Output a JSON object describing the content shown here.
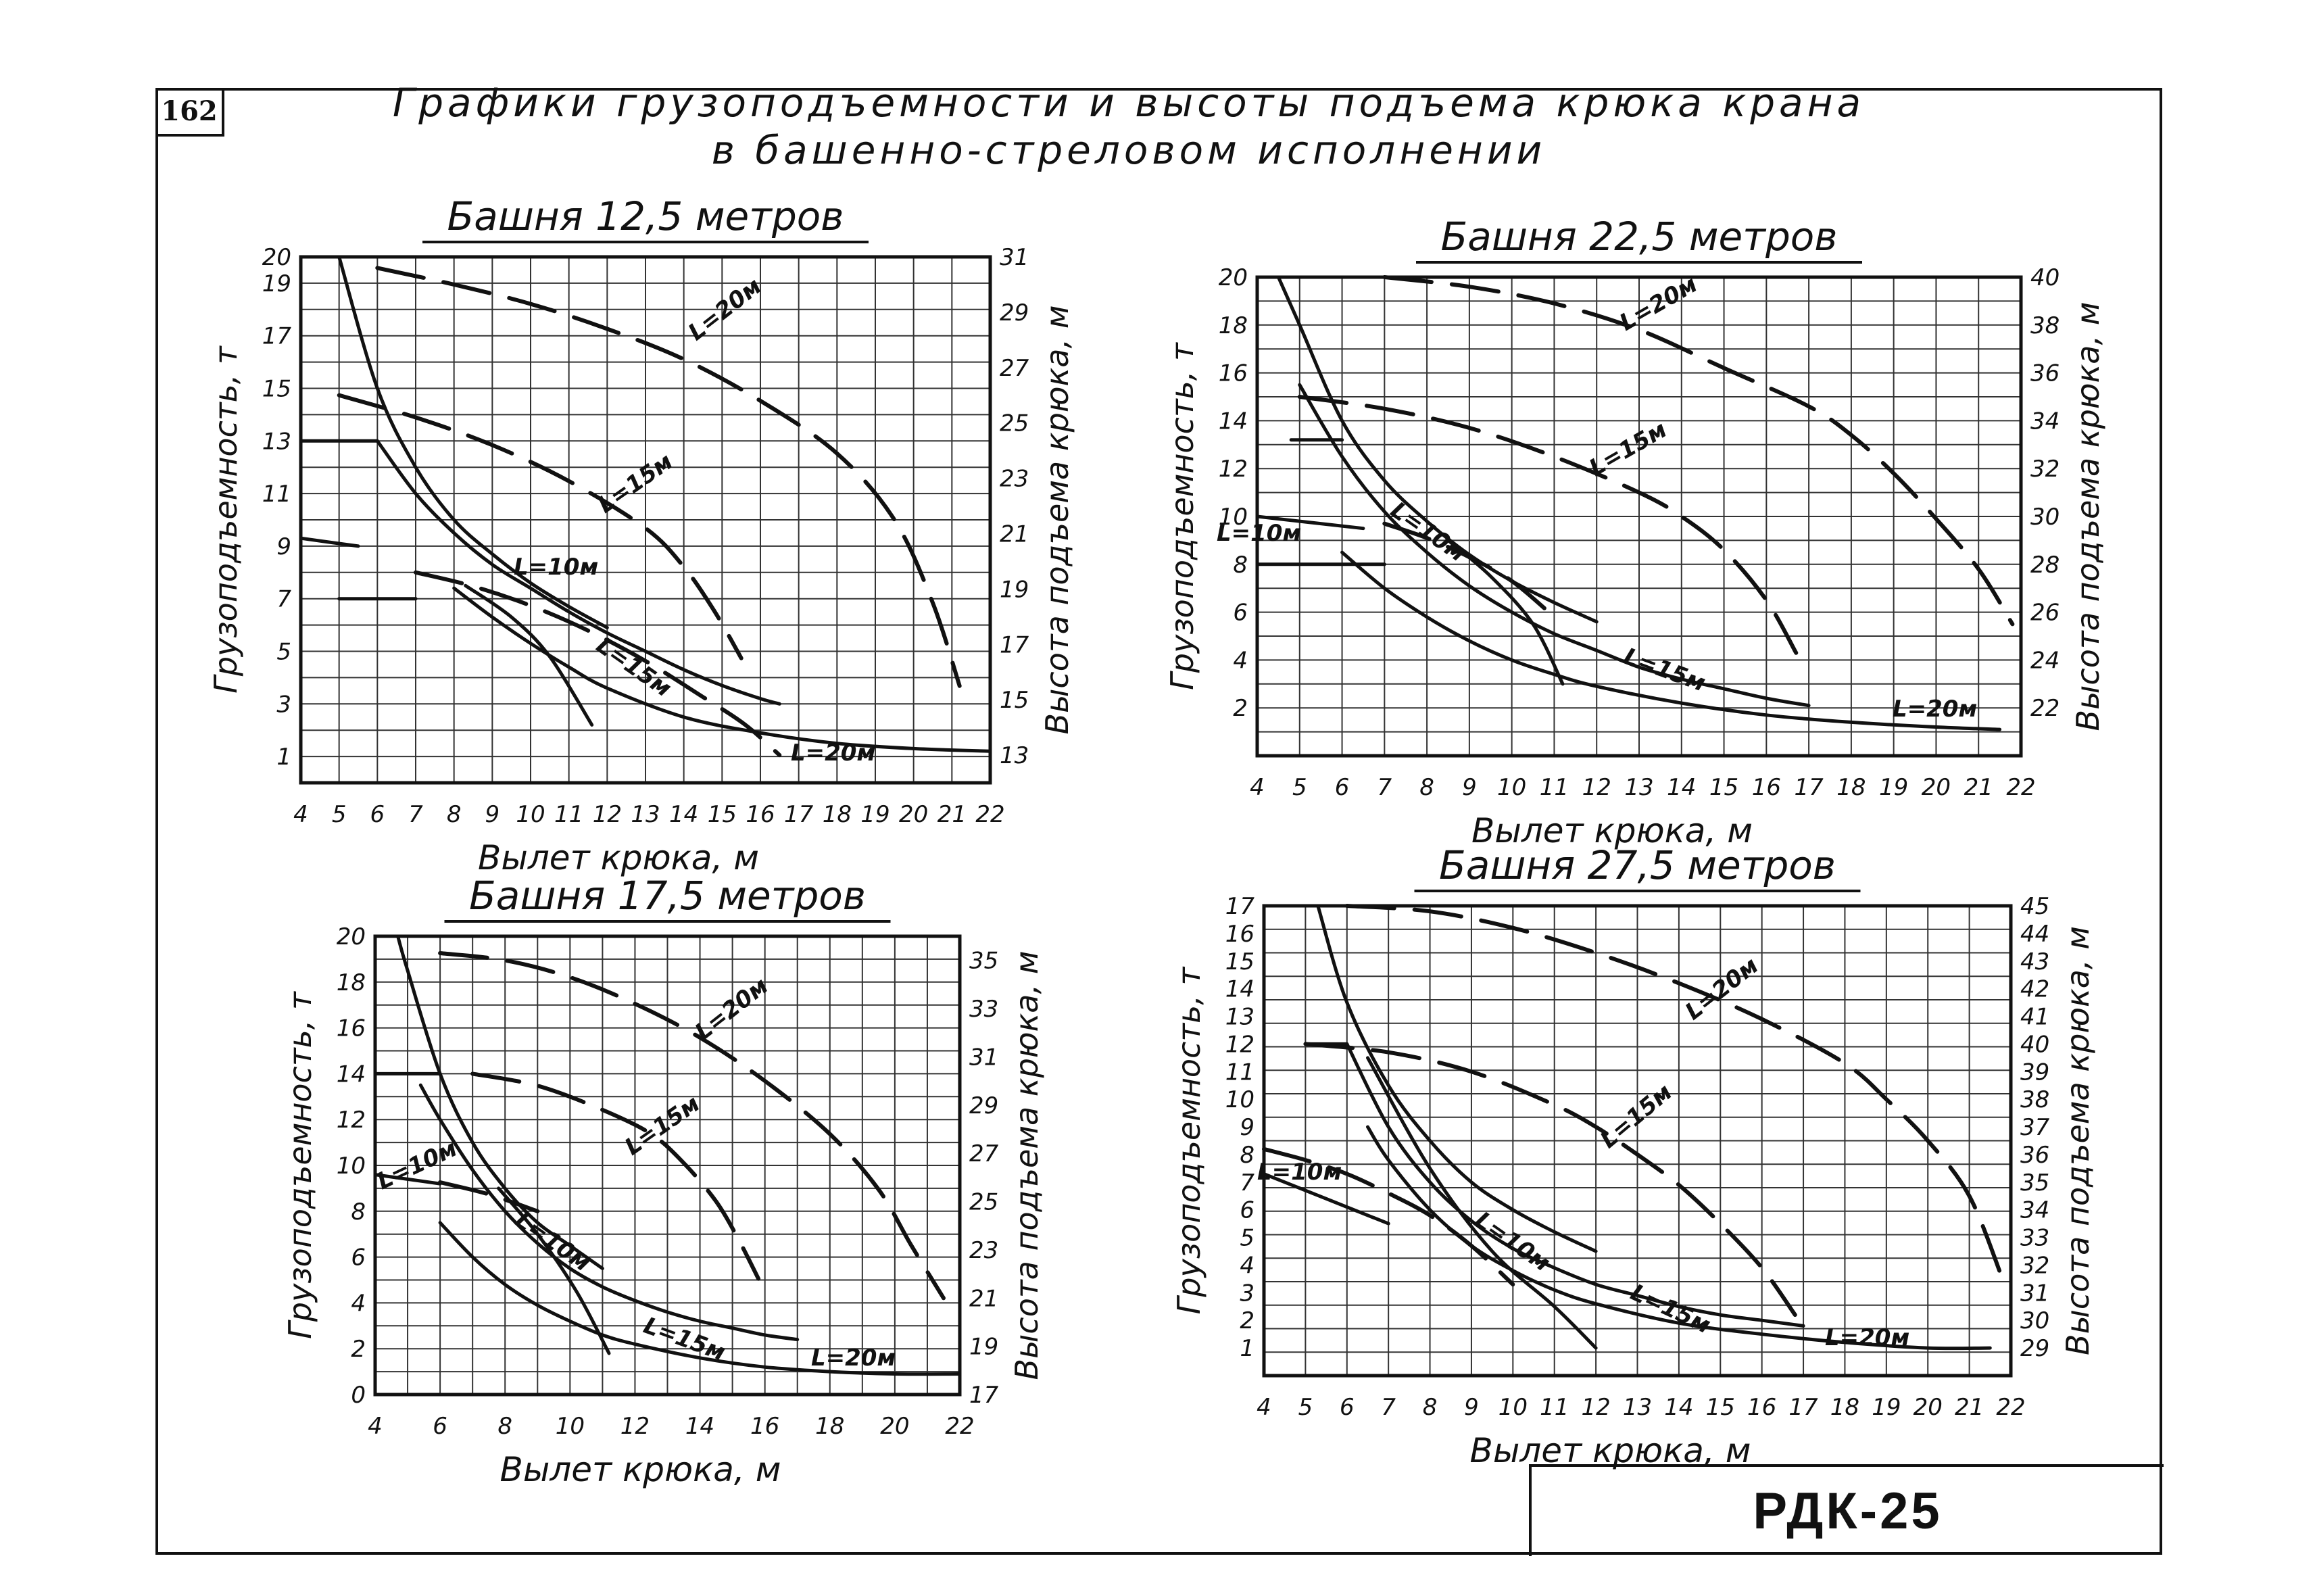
{
  "page": {
    "page_number": "162",
    "title_line1": "Графики грузоподъемности и высоты подъема крюка крана",
    "title_line2": "в башенно-стреловом исполнении",
    "stamp": "РДК-25"
  },
  "chart_data": [
    {
      "type": "line",
      "title": "Башня 12,5 метров",
      "xlabel": "Вылет крюка, м",
      "ylabel": "Грузоподъемность, т",
      "y2label": "Высота подъема крюка, м",
      "xlim": [
        4,
        22
      ],
      "ylim": [
        0,
        20
      ],
      "y2lim": [
        12,
        31
      ],
      "xticks": [
        "4",
        "5",
        "6",
        "7",
        "8",
        "9",
        "10",
        "11",
        "12",
        "13",
        "14",
        "15",
        "16",
        "17",
        "18",
        "19",
        "20",
        "21",
        "22"
      ],
      "yticks": [
        "1",
        "3",
        "5",
        "7",
        "9",
        "11",
        "13",
        "15",
        "17",
        "19",
        "20"
      ],
      "y2ticks": [
        "13",
        "15",
        "17",
        "19",
        "21",
        "23",
        "25",
        "27",
        "29",
        "31"
      ],
      "grid": true,
      "series": [
        {
          "name": "L=10м",
          "axis": "left",
          "style": "solid",
          "x": [
            5,
            6,
            7,
            8,
            9,
            10,
            11,
            12
          ],
          "y": [
            20,
            15,
            12,
            10,
            8.7,
            7.6,
            6.7,
            5.9
          ]
        },
        {
          "name": "L=15м",
          "axis": "left",
          "style": "solid",
          "x": [
            6,
            7,
            8,
            9,
            10,
            11,
            12,
            13,
            14,
            15,
            16,
            16.5
          ],
          "y": [
            13,
            11,
            9.5,
            8.3,
            7.4,
            6.5,
            5.7,
            5,
            4.3,
            3.7,
            3.2,
            3
          ]
        },
        {
          "name": "L=20м",
          "axis": "left",
          "style": "solid",
          "x": [
            8,
            9,
            10,
            11,
            12,
            14,
            16,
            18,
            20,
            22
          ],
          "y": [
            7.4,
            6.3,
            5.3,
            4.4,
            3.6,
            2.5,
            1.9,
            1.5,
            1.3,
            1.2
          ]
        },
        {
          "name": "",
          "axis": "left",
          "style": "solid",
          "x": [
            8.3,
            9.5,
            10.5,
            11.6
          ],
          "y": [
            7.5,
            6.3,
            4.8,
            2.2
          ]
        },
        {
          "name": "",
          "axis": "left",
          "style": "solid",
          "x": [
            4,
            5.5
          ],
          "y": [
            9.3,
            9
          ]
        },
        {
          "name": "",
          "axis": "left",
          "style": "solid",
          "x": [
            4,
            6
          ],
          "y": [
            13,
            13
          ]
        },
        {
          "name": "",
          "axis": "left",
          "style": "solid",
          "x": [
            5,
            7
          ],
          "y": [
            7,
            7
          ]
        },
        {
          "name": "L=20м",
          "axis": "right",
          "style": "dashed",
          "x": [
            6,
            8,
            10,
            12,
            14,
            16,
            18,
            19.5,
            20.5,
            21.2
          ],
          "y": [
            30.6,
            30,
            29.3,
            28.4,
            27.3,
            25.8,
            23.9,
            21.5,
            18.5,
            15.5
          ]
        },
        {
          "name": "L=15м",
          "axis": "right",
          "style": "dashed",
          "x": [
            5,
            7,
            9,
            11,
            13,
            14,
            14.8,
            15.5
          ],
          "y": [
            26,
            25.2,
            24.2,
            22.9,
            21.2,
            19.8,
            18.2,
            16.5
          ]
        },
        {
          "name": "L=10м",
          "axis": "right",
          "style": "dashed",
          "x": [
            7,
            8.5,
            10,
            11.5,
            13,
            14.5,
            15.6,
            16.5
          ],
          "y": [
            19.6,
            19.1,
            18.4,
            17.5,
            16.4,
            15.1,
            14.1,
            13
          ]
        }
      ],
      "annotations": [
        "L=20м",
        "L=15м",
        "L=10м",
        "L=15м",
        "L=20м"
      ]
    },
    {
      "type": "line",
      "title": "Башня 22,5 метров",
      "xlabel": "Вылет крюка, м",
      "ylabel": "Грузоподъемность, т",
      "y2label": "Высота подъема крюка, м",
      "xlim": [
        4,
        22
      ],
      "ylim": [
        0,
        20
      ],
      "y2lim": [
        20,
        40
      ],
      "xticks": [
        "4",
        "5",
        "6",
        "7",
        "8",
        "9",
        "10",
        "11",
        "12",
        "13",
        "14",
        "15",
        "16",
        "17",
        "18",
        "19",
        "20",
        "21",
        "22"
      ],
      "yticks": [
        "2",
        "4",
        "6",
        "8",
        "10",
        "12",
        "14",
        "16",
        "18",
        "20"
      ],
      "y2ticks": [
        "22",
        "24",
        "26",
        "28",
        "30",
        "32",
        "34",
        "36",
        "38",
        "40"
      ],
      "grid": true,
      "series": [
        {
          "name": "L=10м",
          "axis": "left",
          "style": "solid",
          "x": [
            4.5,
            5,
            6,
            7,
            8,
            9,
            10,
            11,
            12
          ],
          "y": [
            20,
            18,
            14,
            11.5,
            9.8,
            8.4,
            7.3,
            6.4,
            5.6
          ]
        },
        {
          "name": "L=15м",
          "axis": "left",
          "style": "solid",
          "x": [
            5,
            6,
            7,
            8,
            9,
            10,
            11,
            12,
            13,
            14,
            15,
            16,
            17
          ],
          "y": [
            15.5,
            12.5,
            10.2,
            8.5,
            7.1,
            6,
            5.1,
            4.4,
            3.7,
            3.2,
            2.8,
            2.4,
            2.1
          ]
        },
        {
          "name": "L=20м",
          "axis": "left",
          "style": "solid",
          "x": [
            6,
            7,
            8,
            9,
            10,
            11,
            12,
            14,
            16,
            18,
            20,
            21.5
          ],
          "y": [
            8.5,
            7,
            5.8,
            4.8,
            4,
            3.4,
            2.9,
            2.2,
            1.7,
            1.4,
            1.2,
            1.1
          ]
        },
        {
          "name": "",
          "axis": "left",
          "style": "solid",
          "x": [
            8.5,
            9.5,
            10.5,
            11.2
          ],
          "y": [
            9,
            7.5,
            5.5,
            3
          ]
        },
        {
          "name": "",
          "axis": "left",
          "style": "solid",
          "x": [
            4,
            6.5
          ],
          "y": [
            10,
            9.5
          ]
        },
        {
          "name": "",
          "axis": "left",
          "style": "solid",
          "x": [
            4,
            7
          ],
          "y": [
            8,
            8
          ]
        },
        {
          "name": "",
          "axis": "left",
          "style": "solid",
          "x": [
            4.8,
            6
          ],
          "y": [
            13.2,
            13.2
          ]
        },
        {
          "name": "L=20м",
          "axis": "right",
          "style": "dashed",
          "x": [
            7,
            9,
            11,
            13,
            15,
            17,
            18,
            19,
            20,
            21,
            21.8
          ],
          "y": [
            40,
            39.6,
            38.9,
            37.8,
            36.2,
            34.6,
            33.4,
            31.8,
            29.9,
            27.8,
            25.5
          ]
        },
        {
          "name": "L=15м",
          "axis": "right",
          "style": "dashed",
          "x": [
            5,
            7,
            9,
            11,
            13,
            14,
            15,
            16,
            16.7
          ],
          "y": [
            35,
            34.5,
            33.7,
            32.5,
            31,
            30,
            28.6,
            26.5,
            24.3
          ]
        },
        {
          "name": "L=10м",
          "axis": "right",
          "style": "dashed",
          "x": [
            7,
            8,
            9,
            10,
            11
          ],
          "y": [
            29.7,
            29.1,
            28.3,
            27.3,
            25.8
          ]
        }
      ],
      "annotations": [
        "L=20м",
        "L=15м",
        "L=10м",
        "L=10м",
        "L=15м",
        "L=20м"
      ]
    },
    {
      "type": "line",
      "title": "Башня 17,5 метров",
      "xlabel": "Вылет крюка, м",
      "ylabel": "Грузоподъемность, т",
      "y2label": "Высота подъема крюка, м",
      "xlim": [
        4,
        22
      ],
      "ylim": [
        0,
        20
      ],
      "y2lim": [
        17,
        36
      ],
      "xticks": [
        "4",
        "6",
        "8",
        "10",
        "12",
        "14",
        "16",
        "18",
        "20",
        "22"
      ],
      "yticks": [
        "0",
        "2",
        "4",
        "6",
        "8",
        "10",
        "12",
        "14",
        "16",
        "18",
        "20"
      ],
      "y2ticks": [
        "17",
        "19",
        "21",
        "23",
        "25",
        "27",
        "29",
        "31",
        "33",
        "35"
      ],
      "grid": true,
      "series": [
        {
          "name": "L=10м",
          "axis": "left",
          "style": "solid",
          "x": [
            4.7,
            5,
            6,
            7,
            8,
            9,
            10,
            11
          ],
          "y": [
            20,
            18.5,
            14,
            11,
            9,
            7.5,
            6.5,
            5.5
          ]
        },
        {
          "name": "L=15м",
          "axis": "left",
          "style": "solid",
          "x": [
            5.4,
            6,
            7,
            8,
            9,
            10,
            11,
            12,
            13,
            14,
            15,
            16,
            17
          ],
          "y": [
            13.5,
            12,
            9.8,
            8,
            6.6,
            5.5,
            4.7,
            4.1,
            3.6,
            3.2,
            2.9,
            2.6,
            2.4
          ]
        },
        {
          "name": "L=20м",
          "axis": "left",
          "style": "solid",
          "x": [
            6,
            7,
            8,
            9,
            10,
            11,
            12,
            14,
            16,
            18,
            20,
            22
          ],
          "y": [
            7.5,
            6,
            4.8,
            3.9,
            3.2,
            2.6,
            2.2,
            1.6,
            1.2,
            1,
            0.9,
            0.9
          ]
        },
        {
          "name": "",
          "axis": "left",
          "style": "solid",
          "x": [
            7.8,
            9,
            10.2,
            11.2
          ],
          "y": [
            9,
            7,
            4.5,
            1.8
          ]
        },
        {
          "name": "",
          "axis": "left",
          "style": "solid",
          "x": [
            4,
            6
          ],
          "y": [
            9.6,
            9.2
          ]
        },
        {
          "name": "",
          "axis": "left",
          "style": "solid",
          "x": [
            4,
            6
          ],
          "y": [
            14,
            14
          ]
        },
        {
          "name": "L=20м",
          "axis": "right",
          "style": "dashed",
          "x": [
            6,
            8,
            10,
            12,
            14,
            16,
            18,
            19.5,
            20.5,
            21.5
          ],
          "y": [
            35.3,
            35,
            34.3,
            33.2,
            31.8,
            30,
            27.8,
            25.5,
            23.2,
            21
          ]
        },
        {
          "name": "L=15м",
          "axis": "right",
          "style": "dashed",
          "x": [
            7,
            9,
            11,
            12.5,
            13.5,
            14.5,
            15.2,
            15.8
          ],
          "y": [
            30.3,
            29.8,
            28.8,
            27.8,
            26.6,
            25,
            23.4,
            21.8
          ]
        },
        {
          "name": "L=10м",
          "axis": "right",
          "style": "dashed",
          "x": [
            6,
            7.5,
            9
          ],
          "y": [
            25.8,
            25.3,
            24.6
          ]
        }
      ],
      "annotations": [
        "L=20м",
        "L=15м",
        "L=10м",
        "L=10м",
        "L=15м",
        "L=20м"
      ]
    },
    {
      "type": "line",
      "title": "Башня 27,5 метров",
      "xlabel": "Вылет крюка, м",
      "ylabel": "Грузоподъемность, т",
      "y2label": "Высота подъема крюка, м",
      "xlim": [
        4,
        22
      ],
      "ylim": [
        0,
        17
      ],
      "y2lim": [
        28,
        45
      ],
      "xticks": [
        "4",
        "5",
        "6",
        "7",
        "8",
        "9",
        "10",
        "11",
        "12",
        "13",
        "14",
        "15",
        "16",
        "17",
        "18",
        "19",
        "20",
        "21",
        "22"
      ],
      "yticks": [
        "1",
        "2",
        "3",
        "4",
        "5",
        "6",
        "7",
        "8",
        "9",
        "10",
        "11",
        "12",
        "13",
        "14",
        "15",
        "16",
        "17"
      ],
      "y2ticks": [
        "29",
        "30",
        "31",
        "32",
        "33",
        "34",
        "35",
        "36",
        "37",
        "38",
        "39",
        "40",
        "41",
        "42",
        "43",
        "44",
        "45"
      ],
      "grid": true,
      "series": [
        {
          "name": "L=10м",
          "axis": "left",
          "style": "solid",
          "x": [
            5.3,
            6,
            7,
            8,
            9,
            10,
            11,
            12
          ],
          "y": [
            17,
            13.5,
            10.5,
            8.5,
            7,
            6,
            5.2,
            4.5
          ]
        },
        {
          "name": "L=15м",
          "axis": "left",
          "style": "solid",
          "x": [
            6,
            7,
            8,
            9,
            10,
            11,
            12,
            13,
            14,
            15,
            16,
            17
          ],
          "y": [
            12,
            9,
            7,
            5.6,
            4.6,
            3.9,
            3.3,
            2.9,
            2.5,
            2.2,
            2,
            1.8
          ]
        },
        {
          "name": "L=20м",
          "axis": "left",
          "style": "solid",
          "x": [
            6.5,
            7,
            8,
            9,
            10,
            11,
            12,
            14,
            16,
            18,
            20,
            21.5
          ],
          "y": [
            9,
            7.8,
            6,
            4.7,
            3.8,
            3.1,
            2.6,
            1.9,
            1.5,
            1.2,
            1,
            1
          ]
        },
        {
          "name": "",
          "axis": "left",
          "style": "solid",
          "x": [
            6.5,
            8,
            9.5,
            11,
            12
          ],
          "y": [
            11.5,
            7.5,
            4.5,
            2.5,
            1
          ]
        },
        {
          "name": "",
          "axis": "left",
          "style": "solid",
          "x": [
            4,
            7
          ],
          "y": [
            7.3,
            5.5
          ]
        },
        {
          "name": "",
          "axis": "left",
          "style": "solid",
          "x": [
            5,
            6
          ],
          "y": [
            12,
            12
          ]
        },
        {
          "name": "L=20м",
          "axis": "right",
          "style": "dashed",
          "x": [
            6,
            8,
            10,
            12,
            14,
            16,
            18,
            19,
            20,
            21,
            21.8
          ],
          "y": [
            45,
            44.8,
            44.2,
            43.3,
            42.2,
            40.9,
            39.3,
            38,
            36.5,
            34.5,
            31.5
          ]
        },
        {
          "name": "L=15м",
          "axis": "right",
          "style": "dashed",
          "x": [
            5,
            7,
            9,
            11,
            12,
            13,
            14,
            15,
            16,
            16.8
          ],
          "y": [
            40,
            39.7,
            39,
            37.8,
            37,
            36,
            34.9,
            33.5,
            31.9,
            30.2
          ]
        },
        {
          "name": "L=10м",
          "axis": "right",
          "style": "dashed",
          "x": [
            4,
            5,
            6,
            7,
            8,
            9,
            10
          ],
          "y": [
            36.2,
            35.8,
            35.3,
            34.6,
            33.8,
            32.7,
            31.3
          ]
        }
      ],
      "annotations": [
        "L=20м",
        "L=15м",
        "L=10м",
        "L=10м",
        "L=15м",
        "L=20м"
      ]
    }
  ]
}
